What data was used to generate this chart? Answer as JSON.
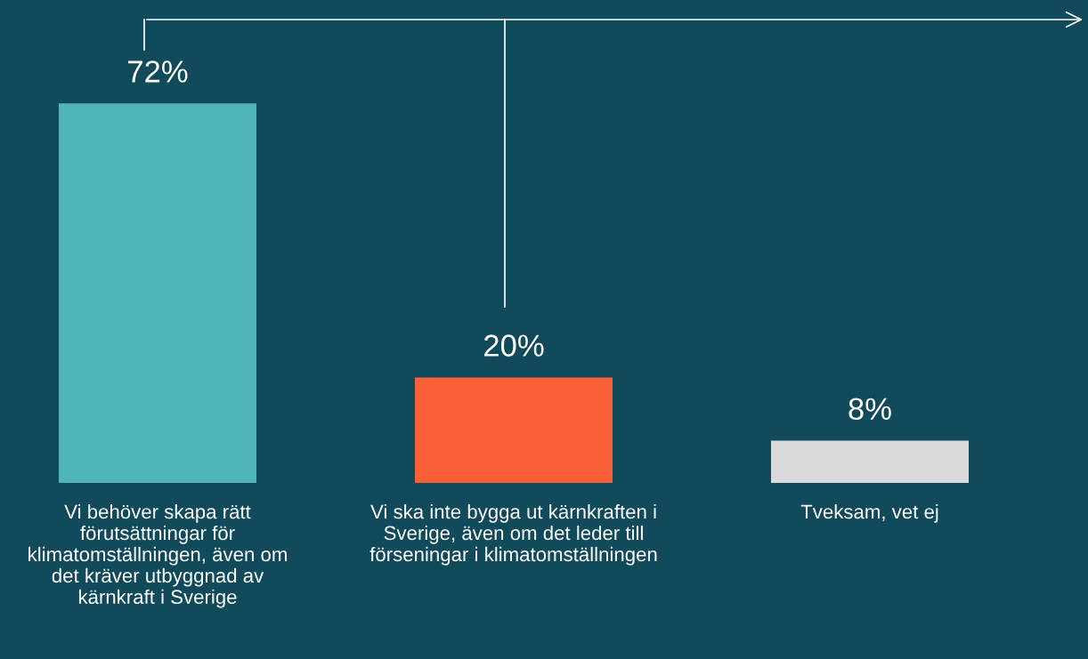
{
  "chart_data": {
    "type": "bar",
    "categories": [
      "Vi behöver skapa rätt förutsättningar för klimatomställningen, även om det kräver utbyggnad av kärnkraft i Sverige",
      "Vi ska inte bygga ut kärnkraften i Sverige, även om det leder till förseningar i klimatomställningen",
      "Tveksam, vet ej"
    ],
    "values": [
      72,
      20,
      8
    ],
    "colors": [
      "#4fb5b8",
      "#fa6038",
      "#d9d9d9"
    ],
    "value_labels": [
      "72%",
      "20%",
      "8%"
    ]
  }
}
